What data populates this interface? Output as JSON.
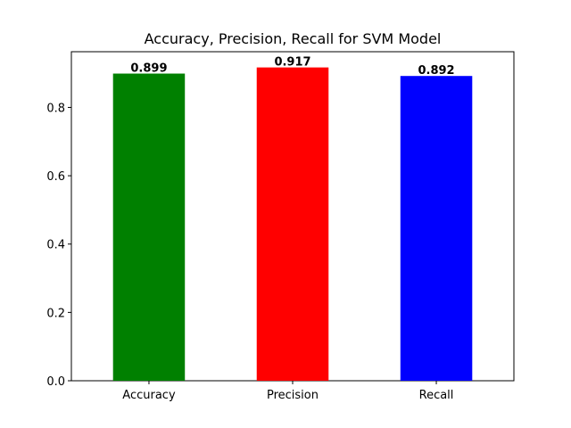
{
  "chart_data": {
    "type": "bar",
    "title": "Accuracy, Precision, Recall for SVM Model",
    "xlabel": "",
    "ylabel": "",
    "categories": [
      "Accuracy",
      "Precision",
      "Recall"
    ],
    "values": [
      0.899,
      0.917,
      0.892
    ],
    "value_labels": [
      "0.899",
      "0.917",
      "0.892"
    ],
    "colors": [
      "#008000",
      "#ff0000",
      "#0000ff"
    ],
    "ylim": [
      0,
      0.963
    ],
    "yticks": [
      0.0,
      0.2,
      0.4,
      0.6,
      0.8
    ],
    "ytick_labels": [
      "0.0",
      "0.2",
      "0.4",
      "0.6",
      "0.8"
    ],
    "grid": false,
    "legend": "none"
  }
}
